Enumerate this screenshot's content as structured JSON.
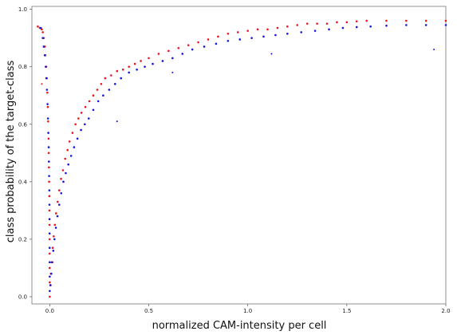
{
  "chart_data": {
    "type": "scatter",
    "title": "",
    "xlabel": "normalized CAM-intensity per cell",
    "ylabel": "class probability of the target-class",
    "xlim": [
      -0.09,
      2.0
    ],
    "ylim": [
      -0.025,
      1.01
    ],
    "x_ticks": [
      {
        "value": 0.0,
        "label": "0.0"
      },
      {
        "value": 0.5,
        "label": "0.5"
      },
      {
        "value": 1.0,
        "label": "1.0"
      },
      {
        "value": 1.5,
        "label": "1.5"
      },
      {
        "value": 2.0,
        "label": "2.0"
      }
    ],
    "y_ticks": [
      {
        "value": 0.0,
        "label": "0.0"
      },
      {
        "value": 0.2,
        "label": "0.2"
      },
      {
        "value": 0.4,
        "label": "0.4"
      },
      {
        "value": 0.6,
        "label": "0.6"
      },
      {
        "value": 0.8,
        "label": "0.8"
      },
      {
        "value": 1.0,
        "label": "1.0"
      }
    ],
    "grid": false,
    "legend": "none",
    "series": [
      {
        "color": "#e8141e",
        "points": [
          [
            -0.06,
            0.94
          ],
          [
            -0.05,
            0.935
          ],
          [
            -0.04,
            0.93
          ],
          [
            -0.035,
            0.92
          ],
          [
            -0.03,
            0.9
          ],
          [
            -0.025,
            0.87
          ],
          [
            -0.022,
            0.84
          ],
          [
            -0.018,
            0.8
          ],
          [
            -0.015,
            0.76
          ],
          [
            -0.012,
            0.71
          ],
          [
            -0.01,
            0.66
          ],
          [
            -0.008,
            0.61
          ],
          [
            -0.006,
            0.55
          ],
          [
            -0.005,
            0.5
          ],
          [
            -0.004,
            0.45
          ],
          [
            -0.003,
            0.4
          ],
          [
            -0.002,
            0.35
          ],
          [
            -0.0015,
            0.3
          ],
          [
            -0.001,
            0.25
          ],
          [
            -0.0008,
            0.2
          ],
          [
            -0.0005,
            0.15
          ],
          [
            -0.0003,
            0.1
          ],
          [
            0.0,
            0.05
          ],
          [
            0.0,
            0.0
          ],
          [
            0.003,
            0.04
          ],
          [
            0.006,
            0.08
          ],
          [
            0.01,
            0.12
          ],
          [
            0.015,
            0.17
          ],
          [
            0.02,
            0.21
          ],
          [
            0.026,
            0.25
          ],
          [
            0.032,
            0.29
          ],
          [
            0.04,
            0.33
          ],
          [
            0.048,
            0.37
          ],
          [
            0.057,
            0.41
          ],
          [
            0.067,
            0.44
          ],
          [
            0.078,
            0.48
          ],
          [
            0.09,
            0.51
          ],
          [
            0.1,
            0.54
          ],
          [
            0.115,
            0.57
          ],
          [
            0.13,
            0.6
          ],
          [
            0.145,
            0.62
          ],
          [
            0.16,
            0.64
          ],
          [
            0.18,
            0.66
          ],
          [
            0.2,
            0.68
          ],
          [
            0.22,
            0.7
          ],
          [
            0.24,
            0.72
          ],
          [
            0.26,
            0.74
          ],
          [
            0.28,
            0.76
          ],
          [
            0.31,
            0.77
          ],
          [
            0.34,
            0.785
          ],
          [
            0.37,
            0.79
          ],
          [
            0.4,
            0.8
          ],
          [
            0.43,
            0.81
          ],
          [
            0.46,
            0.82
          ],
          [
            0.5,
            0.83
          ],
          [
            0.55,
            0.845
          ],
          [
            0.6,
            0.855
          ],
          [
            0.65,
            0.865
          ],
          [
            0.7,
            0.875
          ],
          [
            0.75,
            0.885
          ],
          [
            0.8,
            0.895
          ],
          [
            0.85,
            0.905
          ],
          [
            0.9,
            0.915
          ],
          [
            0.95,
            0.92
          ],
          [
            1.0,
            0.925
          ],
          [
            1.05,
            0.93
          ],
          [
            1.1,
            0.93
          ],
          [
            1.15,
            0.935
          ],
          [
            1.2,
            0.94
          ],
          [
            1.25,
            0.945
          ],
          [
            1.3,
            0.95
          ],
          [
            1.35,
            0.95
          ],
          [
            1.4,
            0.95
          ],
          [
            1.45,
            0.955
          ],
          [
            1.5,
            0.955
          ],
          [
            1.55,
            0.958
          ],
          [
            1.6,
            0.96
          ],
          [
            1.7,
            0.96
          ],
          [
            1.8,
            0.96
          ],
          [
            1.9,
            0.96
          ],
          [
            2.0,
            0.96
          ]
        ]
      },
      {
        "color": "#1414dc",
        "points": [
          [
            -0.045,
            0.935
          ],
          [
            -0.035,
            0.9
          ],
          [
            -0.03,
            0.87
          ],
          [
            -0.025,
            0.84
          ],
          [
            -0.02,
            0.8
          ],
          [
            -0.017,
            0.76
          ],
          [
            -0.014,
            0.72
          ],
          [
            -0.011,
            0.67
          ],
          [
            -0.009,
            0.62
          ],
          [
            -0.007,
            0.57
          ],
          [
            -0.005,
            0.52
          ],
          [
            -0.004,
            0.47
          ],
          [
            -0.003,
            0.42
          ],
          [
            -0.002,
            0.37
          ],
          [
            -0.0015,
            0.32
          ],
          [
            -0.001,
            0.27
          ],
          [
            -0.0007,
            0.22
          ],
          [
            -0.0004,
            0.17
          ],
          [
            -0.0002,
            0.12
          ],
          [
            0.0,
            0.07
          ],
          [
            0.0,
            0.02
          ],
          [
            0.004,
            0.04
          ],
          [
            0.008,
            0.08
          ],
          [
            0.013,
            0.12
          ],
          [
            0.018,
            0.16
          ],
          [
            0.024,
            0.2
          ],
          [
            0.031,
            0.24
          ],
          [
            0.039,
            0.28
          ],
          [
            0.048,
            0.32
          ],
          [
            0.058,
            0.36
          ],
          [
            0.069,
            0.4
          ],
          [
            0.081,
            0.43
          ],
          [
            0.094,
            0.46
          ],
          [
            0.108,
            0.49
          ],
          [
            0.123,
            0.52
          ],
          [
            0.14,
            0.55
          ],
          [
            0.158,
            0.58
          ],
          [
            0.177,
            0.6
          ],
          [
            0.197,
            0.62
          ],
          [
            0.22,
            0.65
          ],
          [
            0.245,
            0.68
          ],
          [
            0.27,
            0.7
          ],
          [
            0.3,
            0.72
          ],
          [
            0.33,
            0.74
          ],
          [
            0.36,
            0.76
          ],
          [
            0.4,
            0.78
          ],
          [
            0.44,
            0.79
          ],
          [
            0.48,
            0.8
          ],
          [
            0.52,
            0.81
          ],
          [
            0.57,
            0.82
          ],
          [
            0.62,
            0.83
          ],
          [
            0.67,
            0.845
          ],
          [
            0.72,
            0.86
          ],
          [
            0.78,
            0.87
          ],
          [
            0.84,
            0.88
          ],
          [
            0.9,
            0.89
          ],
          [
            0.96,
            0.895
          ],
          [
            1.02,
            0.9
          ],
          [
            1.08,
            0.905
          ],
          [
            1.14,
            0.91
          ],
          [
            1.2,
            0.915
          ],
          [
            1.27,
            0.92
          ],
          [
            1.34,
            0.925
          ],
          [
            1.41,
            0.93
          ],
          [
            1.48,
            0.935
          ],
          [
            1.55,
            0.938
          ],
          [
            1.62,
            0.94
          ],
          [
            1.7,
            0.943
          ],
          [
            1.8,
            0.945
          ],
          [
            1.9,
            0.945
          ],
          [
            2.0,
            0.945
          ]
        ]
      }
    ],
    "outliers": [
      {
        "x": 0.34,
        "y": 0.61,
        "color": "#1414dc"
      },
      {
        "x": 0.62,
        "y": 0.78,
        "color": "#1414dc"
      },
      {
        "x": 1.12,
        "y": 0.845,
        "color": "#1414dc"
      },
      {
        "x": 1.94,
        "y": 0.86,
        "color": "#1414dc"
      },
      {
        "x": -0.04,
        "y": 0.74,
        "color": "#e8141e"
      }
    ]
  }
}
